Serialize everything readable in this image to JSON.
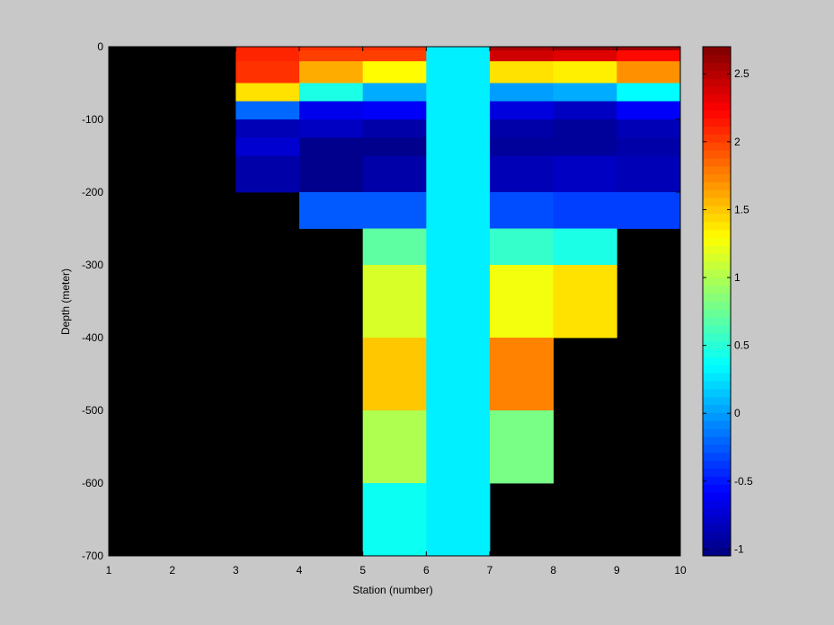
{
  "chart_data": {
    "type": "heatmap",
    "title": "",
    "xlabel": "Station (number)",
    "ylabel": "Depth (meter)",
    "xlim": [
      1,
      10
    ],
    "ylim": [
      -700,
      0
    ],
    "clim": [
      -1.05,
      2.7
    ],
    "colormap": "jet",
    "background_color": "#000000",
    "axes_background": "#c8c8c8",
    "x_ticks": [
      1,
      2,
      3,
      4,
      5,
      6,
      7,
      8,
      9,
      10
    ],
    "y_ticks": [
      0,
      -100,
      -200,
      -300,
      -400,
      -500,
      -600,
      -700
    ],
    "colorbar_ticks": [
      2.5,
      2,
      1.5,
      1,
      0.5,
      0,
      -0.5,
      -1
    ],
    "depth_bins": [
      [
        0,
        -5
      ],
      [
        -5,
        -20
      ],
      [
        -20,
        -50
      ],
      [
        -50,
        -75
      ],
      [
        -75,
        -100
      ],
      [
        -100,
        -125
      ],
      [
        -125,
        -150
      ],
      [
        -150,
        -200
      ],
      [
        -200,
        -250
      ],
      [
        -250,
        -300
      ],
      [
        -300,
        -400
      ],
      [
        -400,
        -500
      ],
      [
        -500,
        -600
      ],
      [
        -600,
        -700
      ]
    ],
    "cells": [
      {
        "x0": 3,
        "x1": 4,
        "values": [
          2.1,
          2.1,
          2.05,
          1.4,
          -0.2,
          -0.85,
          -0.75,
          -0.9,
          null,
          null,
          null,
          null,
          null,
          null
        ]
      },
      {
        "x0": 4,
        "x1": 5,
        "values": [
          2.05,
          2.0,
          1.6,
          0.45,
          -0.65,
          -0.8,
          -1.0,
          -1.0,
          -0.25,
          null,
          null,
          null,
          null,
          null
        ]
      },
      {
        "x0": 5,
        "x1": 6,
        "values": [
          2.05,
          2.0,
          1.3,
          0.05,
          -0.6,
          -0.9,
          -1.0,
          -0.9,
          -0.25,
          0.7,
          1.15,
          1.5,
          1.0,
          0.4
        ]
      },
      {
        "x0": 6,
        "x1": 7,
        "values": [
          0.3,
          0.3,
          0.3,
          0.3,
          0.3,
          0.3,
          0.3,
          0.3,
          0.3,
          0.3,
          0.3,
          0.3,
          0.3,
          0.3
        ]
      },
      {
        "x0": 7,
        "x1": 8,
        "values": [
          2.55,
          2.4,
          1.4,
          0.0,
          -0.7,
          -0.9,
          -0.95,
          -0.85,
          -0.3,
          0.55,
          1.25,
          1.75,
          0.8,
          null
        ]
      },
      {
        "x0": 8,
        "x1": 9,
        "values": [
          2.65,
          2.35,
          1.35,
          0.05,
          -0.8,
          -0.95,
          -0.95,
          -0.8,
          -0.35,
          0.45,
          1.4,
          null,
          null,
          null
        ]
      },
      {
        "x0": 9,
        "x1": 10,
        "values": [
          2.6,
          2.2,
          1.7,
          0.35,
          -0.6,
          -0.85,
          -0.9,
          -0.85,
          -0.35,
          null,
          null,
          null,
          null,
          null
        ]
      }
    ]
  }
}
